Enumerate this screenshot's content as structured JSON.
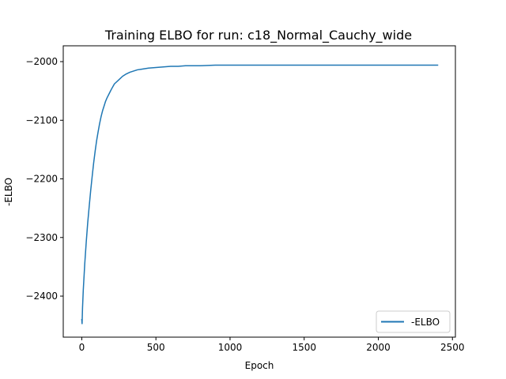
{
  "chart_data": {
    "type": "line",
    "title": "Training ELBO for run: c18_Normal_Cauchy_wide",
    "xlabel": "Epoch",
    "ylabel": "-ELBO",
    "xlim": [
      -125,
      2520
    ],
    "ylim": [
      -2470,
      -1973
    ],
    "x_ticks": [
      0,
      500,
      1000,
      1500,
      2000,
      2500
    ],
    "x_tick_labels": [
      "0",
      "500",
      "1000",
      "1500",
      "2000",
      "2500"
    ],
    "y_ticks": [
      -2000,
      -2100,
      -2200,
      -2300,
      -2400
    ],
    "y_tick_labels": [
      "−2000",
      "−2100",
      "−2200",
      "−2300",
      "−2400"
    ],
    "grid": false,
    "legend": {
      "placement": "lower right",
      "entries": [
        "-ELBO"
      ]
    },
    "series": [
      {
        "name": "-ELBO",
        "color": "#1f77b4",
        "x": [
          0,
          2,
          5,
          10,
          20,
          30,
          40,
          50,
          60,
          70,
          80,
          90,
          100,
          110,
          120,
          130,
          140,
          150,
          160,
          170,
          180,
          190,
          200,
          220,
          250,
          275,
          300,
          325,
          350,
          375,
          400,
          450,
          500,
          550,
          600,
          650,
          700,
          800,
          900,
          1000,
          1100,
          1200,
          1300,
          1400,
          1500,
          1600,
          1700,
          1800,
          1900,
          2000,
          2100,
          2200,
          2300,
          2400
        ],
        "y": [
          -2440,
          -2447,
          -2420,
          -2390,
          -2345,
          -2308,
          -2275,
          -2247,
          -2220,
          -2196,
          -2173,
          -2153,
          -2135,
          -2120,
          -2106,
          -2094,
          -2084,
          -2076,
          -2068,
          -2062,
          -2057,
          -2052,
          -2047,
          -2038,
          -2031,
          -2025,
          -2021,
          -2018,
          -2016,
          -2014,
          -2013,
          -2011,
          -2010,
          -2009,
          -2008,
          -2008,
          -2007,
          -2007,
          -2006,
          -2006,
          -2006,
          -2006,
          -2006,
          -2006,
          -2006,
          -2006,
          -2006,
          -2006,
          -2006,
          -2006,
          -2006,
          -2006,
          -2006,
          -2006
        ]
      }
    ]
  }
}
